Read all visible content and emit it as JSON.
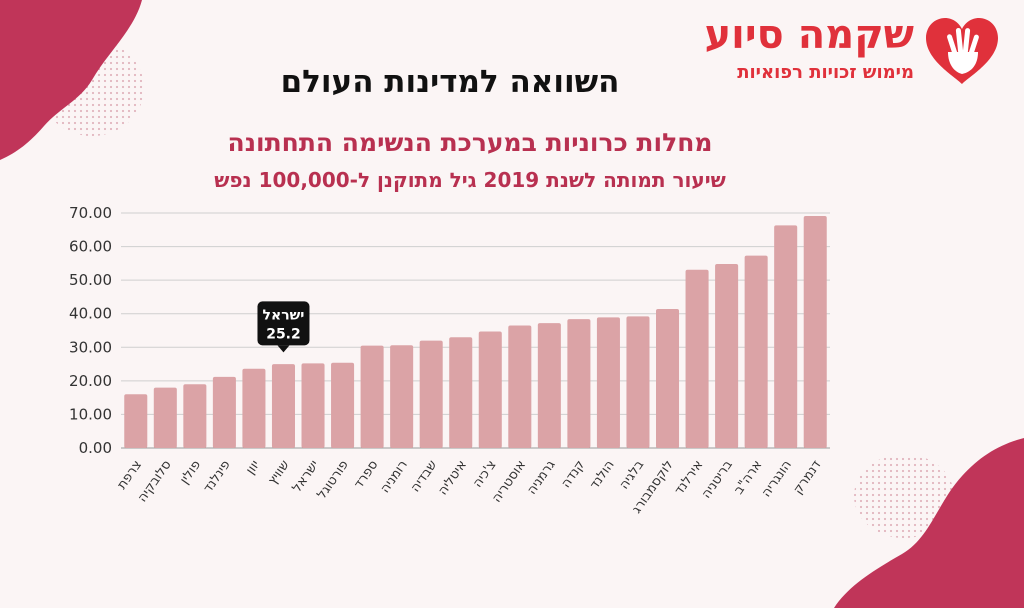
{
  "page": {
    "title": "השוואה למדינות העולם",
    "subtitle": "מחלות כרוניות במערכת הנשימה התחתונה",
    "subtitle2": "שיעור תמותה לשנת 2019 גיל מתוקנן ל-100,000 נפש"
  },
  "logo": {
    "name": "שקמה סיוע",
    "tagline": "מימוש זכויות רפואיות"
  },
  "colors": {
    "bar": "#dba3a6",
    "accent": "#b83050",
    "blob": "#c03559",
    "tooltip_bg": "#111111"
  },
  "tooltip": {
    "name": "ישראל",
    "value": "25.2"
  },
  "chart_data": {
    "type": "bar",
    "title": "מחלות כרוניות במערכת הנשימה התחתונה",
    "subtitle": "שיעור תמותה לשנת 2019 גיל מתוקנן ל-100,000 נפש",
    "xlabel": "",
    "ylabel": "",
    "ylim": [
      0,
      70
    ],
    "yticks": [
      "0.00",
      "10.00",
      "20.00",
      "30.00",
      "40.00",
      "50.00",
      "60.00",
      "70.00"
    ],
    "grid": true,
    "highlight": "ישראל",
    "categories": [
      "צרפת",
      "סלובקיה",
      "פולין",
      "פינלנד",
      "יוון",
      "שוויץ",
      "ישראל",
      "פורטוגל",
      "ספרד",
      "רומניה",
      "שבדיה",
      "איטליה",
      "צ'כיה",
      "אוסטריה",
      "גרמניה",
      "קנדה",
      "הולנד",
      "בלגיה",
      "לוקסמבורג",
      "אירלנד",
      "בריטניה",
      "ארה\"ב",
      "הונגריה",
      "דנמרק"
    ],
    "values": [
      16.0,
      18.0,
      19.0,
      21.2,
      23.6,
      25.0,
      25.2,
      25.4,
      30.5,
      30.6,
      32.0,
      33.0,
      34.7,
      36.5,
      37.2,
      38.4,
      38.9,
      39.2,
      41.4,
      53.1,
      54.8,
      57.3,
      66.3,
      69.1
    ]
  }
}
